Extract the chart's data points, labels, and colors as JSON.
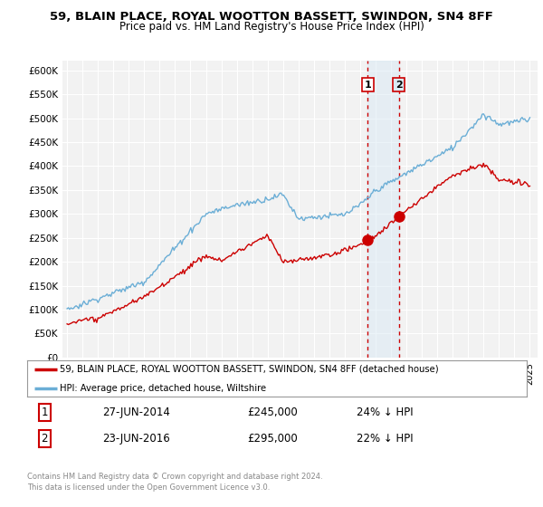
{
  "title": "59, BLAIN PLACE, ROYAL WOOTTON BASSETT, SWINDON, SN4 8FF",
  "subtitle": "Price paid vs. HM Land Registry's House Price Index (HPI)",
  "legend_line1": "59, BLAIN PLACE, ROYAL WOOTTON BASSETT, SWINDON, SN4 8FF (detached house)",
  "legend_line2": "HPI: Average price, detached house, Wiltshire",
  "transaction1_date": "27-JUN-2014",
  "transaction1_price": "£245,000",
  "transaction1_hpi": "24% ↓ HPI",
  "transaction1_year": 2014.5,
  "transaction1_value": 245000,
  "transaction2_date": "23-JUN-2016",
  "transaction2_price": "£295,000",
  "transaction2_hpi": "22% ↓ HPI",
  "transaction2_year": 2016.5,
  "transaction2_value": 295000,
  "hpi_color": "#6baed6",
  "price_color": "#cc0000",
  "marker_color": "#cc0000",
  "shaded_color": "#daeaf5",
  "ylim": [
    0,
    620000
  ],
  "yticks": [
    0,
    50000,
    100000,
    150000,
    200000,
    250000,
    300000,
    350000,
    400000,
    450000,
    500000,
    550000,
    600000
  ],
  "ytick_labels": [
    "£0",
    "£50K",
    "£100K",
    "£150K",
    "£200K",
    "£250K",
    "£300K",
    "£350K",
    "£400K",
    "£450K",
    "£500K",
    "£550K",
    "£600K"
  ],
  "footer": "Contains HM Land Registry data © Crown copyright and database right 2024.\nThis data is licensed under the Open Government Licence v3.0.",
  "background_color": "#ffffff",
  "plot_bg_color": "#f2f2f2"
}
